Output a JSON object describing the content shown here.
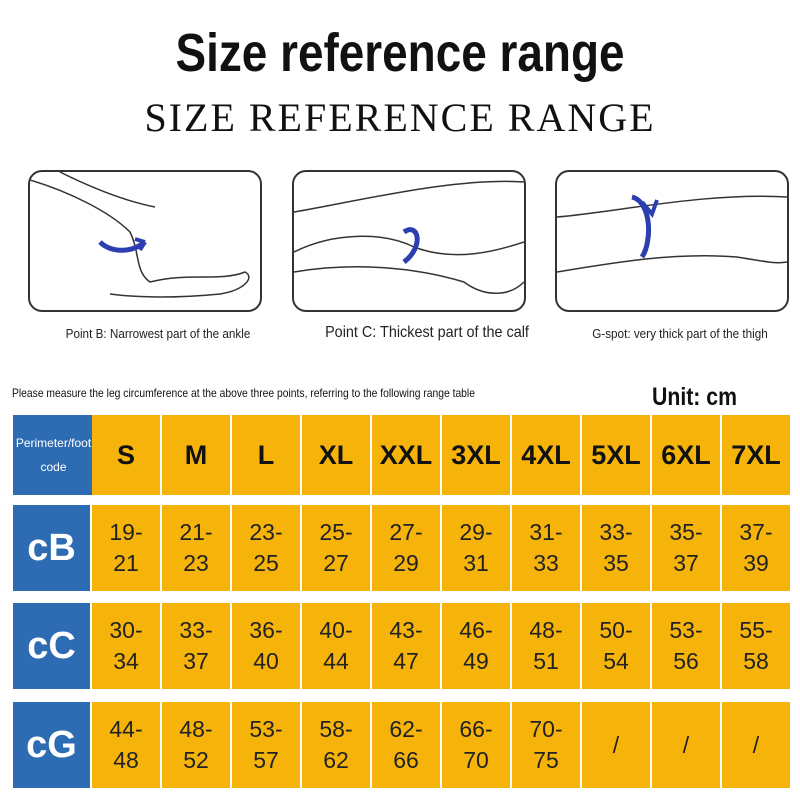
{
  "header": {
    "title": "Size reference range",
    "subtitle": "SIZE REFERENCE RANGE"
  },
  "figures": [
    {
      "caption": "Point B: Narrowest part of the ankle"
    },
    {
      "caption": "Point C: Thickest part of the calf"
    },
    {
      "caption": "G-spot: very thick part of the thigh"
    }
  ],
  "instruction": "Please measure the leg circumference at the above three points, referring to the following range table",
  "unit": "Unit: cm",
  "table": {
    "corner": "Perimeter/foot code",
    "columns": [
      "S",
      "M",
      "L",
      "XL",
      "XXL",
      "3XL",
      "4XL",
      "5XL",
      "6XL",
      "7XL"
    ],
    "rows": [
      {
        "label": "cB",
        "cells": [
          [
            "19-",
            "21"
          ],
          [
            "21-",
            "23"
          ],
          [
            "23-",
            "25"
          ],
          [
            "25-",
            "27"
          ],
          [
            "27-",
            "29"
          ],
          [
            "29-",
            "31"
          ],
          [
            "31-",
            "33"
          ],
          [
            "33-",
            "35"
          ],
          [
            "35-",
            "37"
          ],
          [
            "37-",
            "39"
          ]
        ]
      },
      {
        "label": "cC",
        "cells": [
          [
            "30-",
            "34"
          ],
          [
            "33-",
            "37"
          ],
          [
            "36-",
            "40"
          ],
          [
            "40-",
            "44"
          ],
          [
            "43-",
            "47"
          ],
          [
            "46-",
            "49"
          ],
          [
            "48-",
            "51"
          ],
          [
            "50-",
            "54"
          ],
          [
            "53-",
            "56"
          ],
          [
            "55-",
            "58"
          ]
        ]
      },
      {
        "label": "cG",
        "cells": [
          [
            "44-",
            "48"
          ],
          [
            "48-",
            "52"
          ],
          [
            "53-",
            "57"
          ],
          [
            "58-",
            "62"
          ],
          [
            "62-",
            "66"
          ],
          [
            "66-",
            "70"
          ],
          [
            "70-",
            "75"
          ],
          [
            "/"
          ],
          [
            "/"
          ],
          [
            "/"
          ]
        ]
      }
    ]
  }
}
